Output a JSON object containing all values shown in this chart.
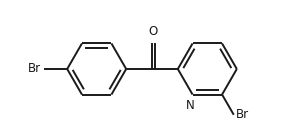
{
  "background_color": "#ffffff",
  "line_color": "#1a1a1a",
  "line_width": 1.4,
  "font_size": 8.5,
  "figsize": [
    3.04,
    1.38
  ],
  "dpi": 100,
  "xlim": [
    -2.2,
    2.2
  ],
  "ylim": [
    -1.1,
    1.1
  ]
}
